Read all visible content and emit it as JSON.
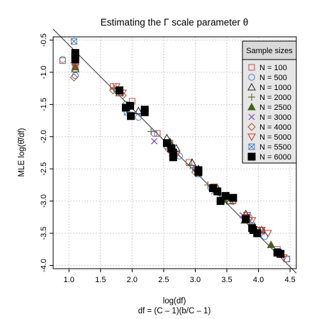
{
  "chart_data": {
    "type": "scatter",
    "title": "Estimating the Γ scale parameter θ",
    "xlabel": "log(df)",
    "xlabel2": "df = (C – 1)(b/C – 1)",
    "ylabel": "MLE log(θ̂/df)",
    "xlim": [
      0.75,
      4.6
    ],
    "ylim": [
      -4.05,
      -0.45
    ],
    "x_ticks": [
      1.0,
      1.5,
      2.0,
      2.5,
      3.0,
      3.5,
      4.0,
      4.5
    ],
    "x_tick_labels": [
      "1.0",
      "1.5",
      "2.0",
      "2.5",
      "3.0",
      "3.5",
      "4.0",
      "4.5"
    ],
    "y_ticks": [
      -0.5,
      -1.0,
      -1.5,
      -2.0,
      -2.5,
      -3.0,
      -3.5,
      -4.0
    ],
    "y_tick_labels": [
      "-0.5",
      "-1.0",
      "-1.5",
      "-2.0",
      "-2.5",
      "-3.0",
      "-3.5",
      "-4.0"
    ],
    "grid": true,
    "legend_title": "Sample sizes",
    "legend_position": "top-right",
    "reference_line": {
      "x": [
        0.75,
        4.6
      ],
      "y": [
        -0.33,
        -4.12
      ],
      "color": "#333333"
    },
    "series": [
      {
        "name": "N = 100",
        "marker": "square-open",
        "color": "#c0504d",
        "points": [
          [
            0.9,
            -0.82
          ],
          [
            1.1,
            -0.9
          ],
          [
            1.7,
            -1.22
          ],
          [
            1.8,
            -1.3
          ],
          [
            2.0,
            -1.45
          ],
          [
            2.4,
            -1.95
          ],
          [
            2.6,
            -2.1
          ],
          [
            2.9,
            -2.4
          ],
          [
            3.05,
            -2.55
          ],
          [
            3.3,
            -2.8
          ],
          [
            3.6,
            -3.0
          ],
          [
            3.8,
            -3.25
          ],
          [
            4.05,
            -3.45
          ],
          [
            4.3,
            -3.75
          ],
          [
            4.45,
            -3.9
          ]
        ]
      },
      {
        "name": "N = 500",
        "marker": "circle-open",
        "color": "#4f7fbf",
        "points": [
          [
            0.9,
            -0.8
          ],
          [
            1.1,
            -1.05
          ],
          [
            1.75,
            -1.28
          ],
          [
            1.9,
            -1.5
          ],
          [
            2.1,
            -1.7
          ],
          [
            2.35,
            -1.95
          ],
          [
            2.55,
            -2.15
          ],
          [
            2.75,
            -2.3
          ],
          [
            3.0,
            -2.5
          ],
          [
            3.25,
            -2.8
          ],
          [
            3.55,
            -2.95
          ],
          [
            3.85,
            -3.25
          ],
          [
            4.1,
            -3.55
          ],
          [
            4.35,
            -3.8
          ],
          [
            4.45,
            -3.9
          ]
        ]
      },
      {
        "name": "N = 1000",
        "marker": "triangle-open",
        "color": "#222222",
        "points": [
          [
            1.1,
            -0.95
          ],
          [
            1.8,
            -1.32
          ],
          [
            2.1,
            -1.6
          ],
          [
            2.2,
            -1.62
          ],
          [
            2.55,
            -2.02
          ],
          [
            2.7,
            -2.18
          ],
          [
            2.95,
            -2.4
          ],
          [
            3.05,
            -2.5
          ],
          [
            3.35,
            -2.8
          ],
          [
            3.55,
            -3.0
          ],
          [
            3.8,
            -3.2
          ],
          [
            4.05,
            -3.45
          ],
          [
            4.35,
            -3.8
          ]
        ]
      },
      {
        "name": "N = 2000",
        "marker": "plus",
        "color": "#6b6b4a",
        "points": [
          [
            1.08,
            -0.85
          ],
          [
            1.72,
            -1.25
          ],
          [
            1.95,
            -1.55
          ],
          [
            2.3,
            -1.92
          ],
          [
            2.62,
            -2.2
          ],
          [
            2.92,
            -2.45
          ],
          [
            3.2,
            -2.75
          ],
          [
            3.5,
            -2.95
          ],
          [
            3.82,
            -3.22
          ],
          [
            4.02,
            -3.45
          ],
          [
            4.3,
            -3.8
          ]
        ]
      },
      {
        "name": "N = 2500",
        "marker": "triangle-filled",
        "color": "#4a5e1f",
        "points": [
          [
            1.1,
            -0.92
          ],
          [
            2.6,
            -2.08
          ],
          [
            3.45,
            -2.98
          ],
          [
            3.78,
            -3.3
          ],
          [
            4.2,
            -3.68
          ]
        ]
      },
      {
        "name": "N = 3000",
        "marker": "cross",
        "color": "#8a3fbf",
        "points": [
          [
            1.1,
            -0.85
          ],
          [
            2.35,
            -2.07
          ],
          [
            2.65,
            -2.18
          ],
          [
            3.3,
            -2.85
          ],
          [
            3.75,
            -3.22
          ],
          [
            4.05,
            -3.48
          ]
        ]
      },
      {
        "name": "N = 4000",
        "marker": "diamond-open",
        "color": "#a0553a",
        "points": [
          [
            1.08,
            -1.08
          ],
          [
            1.1,
            -0.88
          ],
          [
            1.7,
            -1.28
          ],
          [
            1.85,
            -1.36
          ],
          [
            2.58,
            -2.2
          ],
          [
            2.65,
            -2.25
          ],
          [
            3.0,
            -2.55
          ],
          [
            3.35,
            -2.85
          ],
          [
            3.6,
            -3.0
          ],
          [
            3.85,
            -3.28
          ],
          [
            4.05,
            -3.45
          ],
          [
            4.3,
            -3.82
          ]
        ]
      },
      {
        "name": "N = 5000",
        "marker": "triangle-down-open",
        "color": "#c0392b",
        "points": [
          [
            1.1,
            -0.9
          ],
          [
            1.75,
            -1.22
          ],
          [
            1.85,
            -1.32
          ],
          [
            2.62,
            -2.18
          ],
          [
            2.7,
            -2.28
          ],
          [
            3.02,
            -2.52
          ],
          [
            3.3,
            -2.78
          ],
          [
            3.55,
            -2.95
          ],
          [
            3.82,
            -3.22
          ],
          [
            3.9,
            -3.3
          ],
          [
            4.05,
            -3.45
          ],
          [
            4.15,
            -3.5
          ],
          [
            4.4,
            -3.88
          ]
        ]
      },
      {
        "name": "N = 5500",
        "marker": "square-x",
        "color": "#4f7fbf",
        "points": [
          [
            1.08,
            -0.52
          ],
          [
            1.1,
            -0.78
          ],
          [
            1.92,
            -1.62
          ],
          [
            2.65,
            -2.22
          ],
          [
            3.05,
            -2.58
          ],
          [
            3.4,
            -2.92
          ],
          [
            3.9,
            -3.38
          ],
          [
            4.3,
            -3.78
          ]
        ]
      },
      {
        "name": "N = 6000",
        "marker": "square-filled",
        "color": "#000000",
        "points": [
          [
            1.1,
            -0.7
          ],
          [
            1.1,
            -0.75
          ],
          [
            1.1,
            -0.8
          ],
          [
            1.8,
            -1.28
          ],
          [
            1.9,
            -1.55
          ],
          [
            1.97,
            -1.52
          ],
          [
            1.98,
            -1.68
          ],
          [
            2.2,
            -1.58
          ],
          [
            2.2,
            -1.62
          ],
          [
            2.55,
            -2.1
          ],
          [
            2.62,
            -2.18
          ],
          [
            2.65,
            -2.25
          ],
          [
            2.65,
            -2.32
          ],
          [
            3.05,
            -2.52
          ],
          [
            3.05,
            -2.55
          ],
          [
            3.28,
            -2.8
          ],
          [
            3.35,
            -2.85
          ],
          [
            3.4,
            -3.0
          ],
          [
            3.48,
            -2.92
          ],
          [
            3.6,
            -2.95
          ],
          [
            3.8,
            -3.28
          ],
          [
            3.9,
            -3.42
          ],
          [
            3.92,
            -3.45
          ],
          [
            3.98,
            -3.5
          ],
          [
            4.3,
            -3.8
          ],
          [
            4.35,
            -3.82
          ]
        ]
      }
    ]
  }
}
